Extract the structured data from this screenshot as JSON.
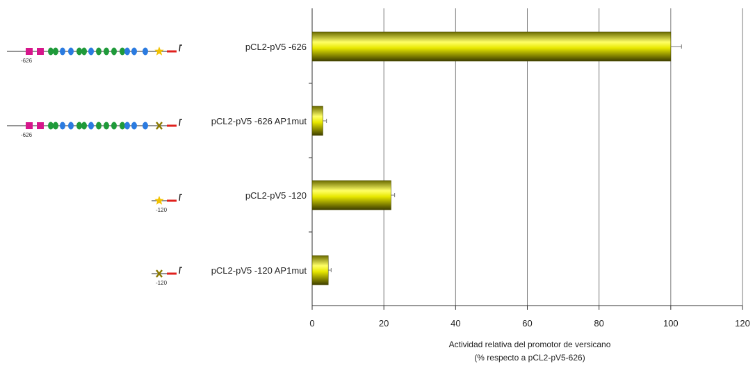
{
  "chart_data": {
    "type": "bar",
    "orientation": "horizontal",
    "categories": [
      "pCL2-pV5 -626",
      "pCL2-pV5 -626 AP1mut",
      "pCL2-pV5 -120",
      "pCL2-pV5 -120 AP1mut"
    ],
    "values": [
      100,
      3,
      22,
      4.5
    ],
    "errors": [
      3,
      1,
      1,
      0.8
    ],
    "xlabel": "Actividad relativa del promotor de versicano",
    "xlabel_line2": "(% respecto a pCL2-pV5-626)",
    "ylabel": "",
    "xlim": [
      0,
      120
    ],
    "xticks": [
      "0",
      "20",
      "40",
      "60",
      "80",
      "100",
      "120"
    ],
    "grid": "vertical",
    "bar_color": "#e8e800",
    "construct_position_labels": [
      "-626",
      "-626",
      "-120",
      "-120"
    ]
  },
  "colors": {
    "bar_highlight": "#ffff66",
    "bar_shadow": "#6b6b00",
    "site_magenta": "#d6168b",
    "site_green": "#1f9a3a",
    "site_blue": "#2b7be0",
    "ap1_star": "#f2c200",
    "ap1_mut": "#8c7a00",
    "tss_red": "#e0201c"
  }
}
